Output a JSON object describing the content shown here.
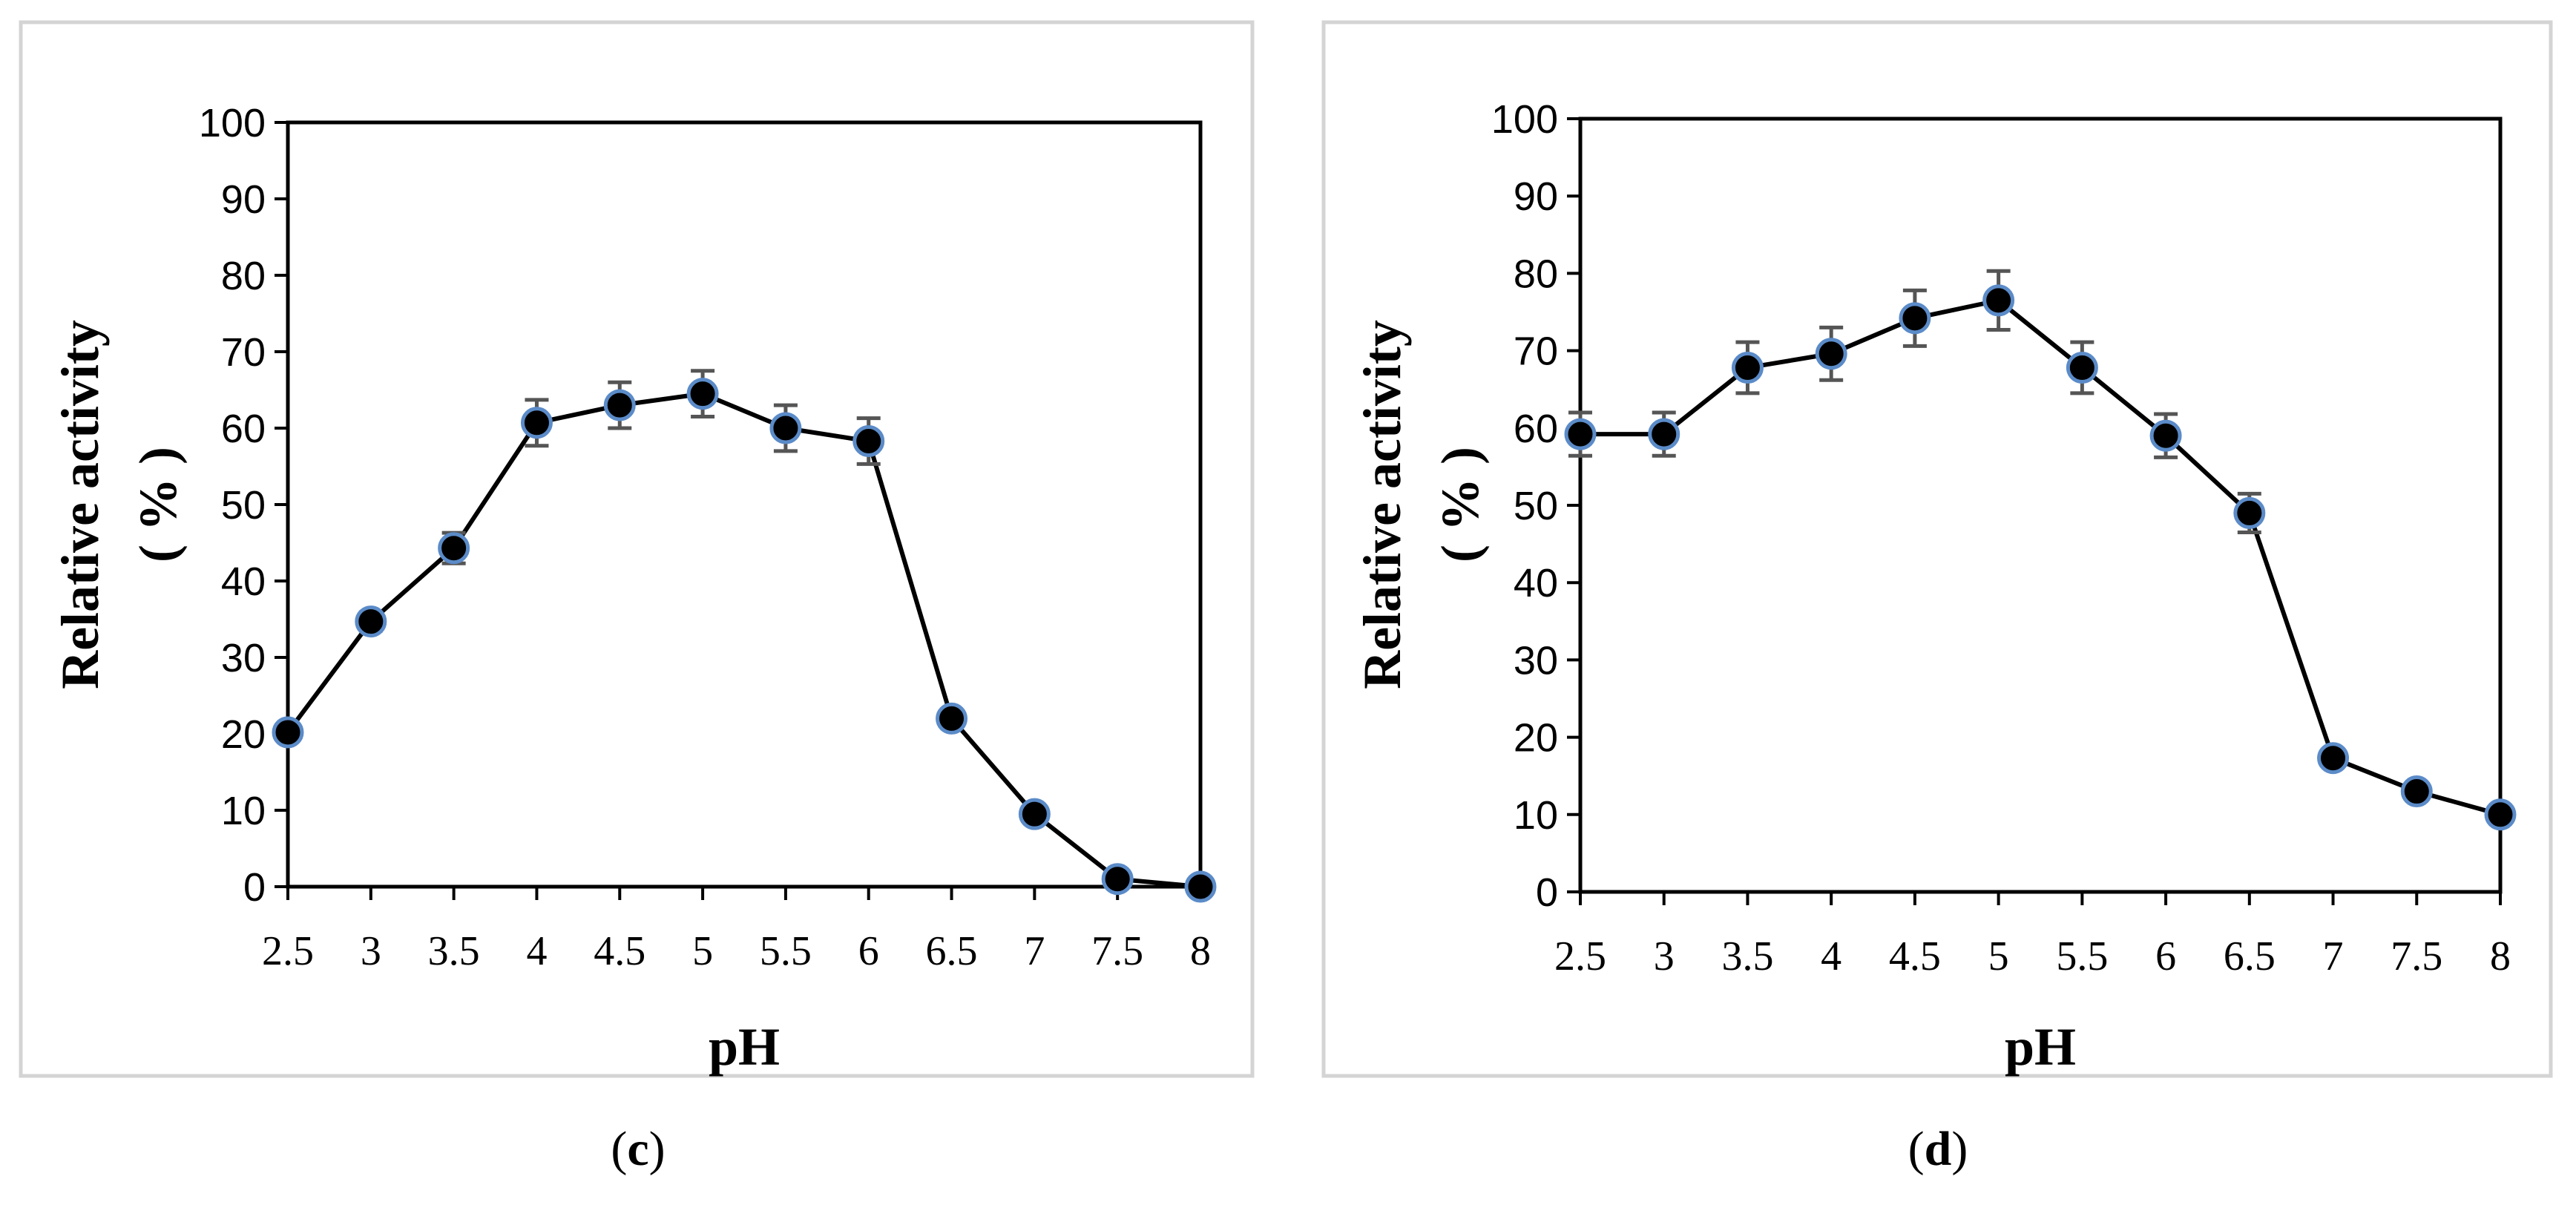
{
  "chart_data": [
    {
      "type": "line",
      "panel": "c",
      "caption_letter": "c",
      "x": [
        2.5,
        3,
        3.5,
        4,
        4.5,
        5,
        5.5,
        6,
        6.5,
        7,
        7.5,
        8
      ],
      "x_tick_labels": [
        "2.5",
        "3",
        "3.5",
        "4",
        "4.5",
        "5",
        "5.5",
        "6",
        "6.5",
        "7",
        "7.5",
        "8"
      ],
      "series": [
        {
          "name": "Relative activity",
          "values": [
            20.2,
            34.7,
            44.3,
            60.7,
            63.0,
            64.5,
            60.0,
            58.3,
            22.0,
            9.5,
            1.0,
            0.0
          ],
          "errors": [
            0,
            1.2,
            2.0,
            3.0,
            3.0,
            3.0,
            3.0,
            3.0,
            0,
            0,
            0,
            0
          ]
        }
      ],
      "xlabel": "pH",
      "ylabel_line1": "Relative activity",
      "ylabel_line2": "( % )",
      "ylim": [
        0,
        100
      ],
      "y_ticks": [
        "0",
        "10",
        "20",
        "30",
        "40",
        "50",
        "60",
        "70",
        "80",
        "90",
        "100"
      ],
      "grid": false,
      "legend": "none"
    },
    {
      "type": "line",
      "panel": "d",
      "caption_letter": "d",
      "x": [
        2.5,
        3,
        3.5,
        4,
        4.5,
        5,
        5.5,
        6,
        6.5,
        7,
        7.5,
        8
      ],
      "x_tick_labels": [
        "2.5",
        "3",
        "3.5",
        "4",
        "4.5",
        "5",
        "5.5",
        "6",
        "6.5",
        "7",
        "7.5",
        "8"
      ],
      "series": [
        {
          "name": "Relative activity",
          "values": [
            59.2,
            59.2,
            67.8,
            69.6,
            74.2,
            76.5,
            67.8,
            59.0,
            49.0,
            17.3,
            13.0,
            10.0
          ],
          "errors": [
            2.8,
            2.8,
            3.3,
            3.4,
            3.6,
            3.8,
            3.3,
            2.8,
            2.5,
            0,
            0,
            0
          ]
        }
      ],
      "xlabel": "pH",
      "ylabel_line1": "Relative activity",
      "ylabel_line2": "( % )",
      "ylim": [
        0,
        100
      ],
      "y_ticks": [
        "0",
        "10",
        "20",
        "30",
        "40",
        "50",
        "60",
        "70",
        "80",
        "90",
        "100"
      ],
      "grid": false,
      "legend": "none"
    }
  ]
}
